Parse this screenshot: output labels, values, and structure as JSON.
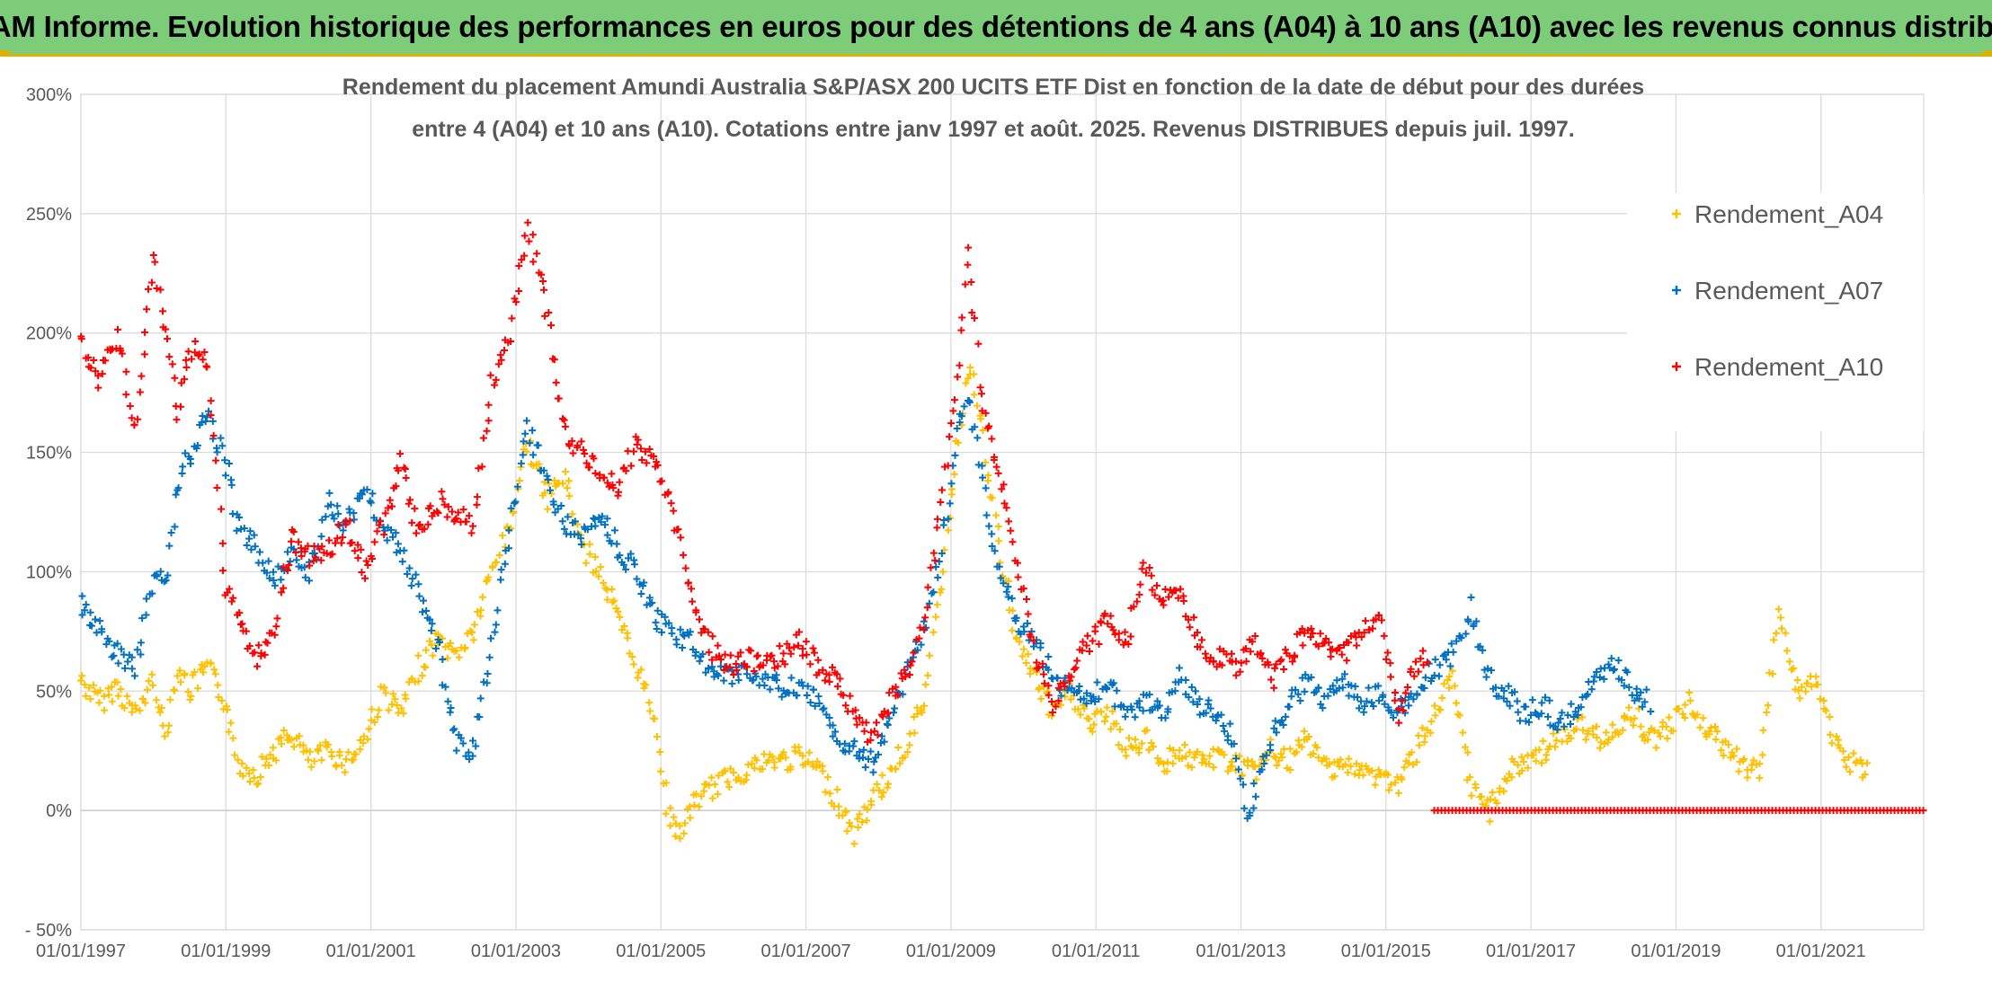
{
  "banner": {
    "title": "ADAM Informe. Evolution historique des performances en euros pour des détentions de 4 ans (A04) à 10 ans (A10) avec les revenus connus distribués"
  },
  "chart_data": {
    "type": "scatter",
    "title_lines": [
      "Rendement du placement Amundi Australia S&P/ASX 200 UCITS ETF Dist en fonction de la date de début pour des durées",
      "entre 4 (A04) et 10 ans (A10). Cotations entre janv 1997 et août. 2025. Revenus DISTRIBUES depuis juil. 1997."
    ],
    "xlabel": "",
    "ylabel": "",
    "x_range": [
      "1997-01-01",
      "2022-06-01"
    ],
    "ylim": [
      -50,
      300
    ],
    "y_ticks": [
      -50,
      0,
      50,
      100,
      150,
      200,
      250,
      300
    ],
    "y_tick_labels": [
      "- 50%",
      "0%",
      "50%",
      "100%",
      "150%",
      "200%",
      "250%",
      "300%"
    ],
    "x_tick_labels": [
      "01/01/1997",
      "01/01/1999",
      "01/01/2001",
      "01/01/2003",
      "01/01/2005",
      "01/01/2007",
      "01/01/2009",
      "01/01/2011",
      "01/01/2013",
      "01/01/2015",
      "01/01/2017",
      "01/01/2019",
      "01/01/2021"
    ],
    "grid": true,
    "legend_position": "right",
    "marker": "+",
    "series": [
      {
        "name": "Rendement_A04",
        "color": "#ffc000",
        "points": [
          [
            "1997-01",
            55
          ],
          [
            "1997-04",
            45
          ],
          [
            "1997-07",
            52
          ],
          [
            "1997-10",
            40
          ],
          [
            "1998-01",
            55
          ],
          [
            "1998-03",
            30
          ],
          [
            "1998-05",
            60
          ],
          [
            "1998-07",
            50
          ],
          [
            "1998-10",
            60
          ],
          [
            "1999-01",
            45
          ],
          [
            "1999-03",
            20
          ],
          [
            "1999-06",
            15
          ],
          [
            "1999-09",
            25
          ],
          [
            "1999-12",
            32
          ],
          [
            "2000-03",
            20
          ],
          [
            "2000-06",
            25
          ],
          [
            "2000-09",
            20
          ],
          [
            "2000-12",
            30
          ],
          [
            "2001-03",
            50
          ],
          [
            "2001-06",
            40
          ],
          [
            "2001-09",
            60
          ],
          [
            "2001-12",
            72
          ],
          [
            "2002-03",
            65
          ],
          [
            "2002-06",
            75
          ],
          [
            "2002-09",
            100
          ],
          [
            "2002-12",
            120
          ],
          [
            "2003-03",
            155
          ],
          [
            "2003-06",
            130
          ],
          [
            "2003-09",
            140
          ],
          [
            "2003-12",
            110
          ],
          [
            "2004-03",
            100
          ],
          [
            "2004-06",
            80
          ],
          [
            "2004-09",
            60
          ],
          [
            "2004-12",
            40
          ],
          [
            "2005-02",
            0
          ],
          [
            "2005-04",
            -10
          ],
          [
            "2005-07",
            5
          ],
          [
            "2005-10",
            10
          ],
          [
            "2006-01",
            15
          ],
          [
            "2006-06",
            20
          ],
          [
            "2006-12",
            22
          ],
          [
            "2007-03",
            18
          ],
          [
            "2007-06",
            5
          ],
          [
            "2007-09",
            -10
          ],
          [
            "2007-12",
            5
          ],
          [
            "2008-03",
            15
          ],
          [
            "2008-06",
            30
          ],
          [
            "2008-09",
            50
          ],
          [
            "2008-12",
            110
          ],
          [
            "2009-02",
            150
          ],
          [
            "2009-04",
            190
          ],
          [
            "2009-06",
            160
          ],
          [
            "2009-09",
            110
          ],
          [
            "2009-12",
            70
          ],
          [
            "2010-03",
            55
          ],
          [
            "2010-06",
            40
          ],
          [
            "2010-09",
            50
          ],
          [
            "2010-12",
            35
          ],
          [
            "2011-03",
            40
          ],
          [
            "2011-06",
            25
          ],
          [
            "2011-09",
            30
          ],
          [
            "2011-12",
            20
          ],
          [
            "2012-03",
            25
          ],
          [
            "2012-06",
            20
          ],
          [
            "2012-09",
            22
          ],
          [
            "2012-12",
            20
          ],
          [
            "2013-03",
            15
          ],
          [
            "2013-06",
            25
          ],
          [
            "2013-09",
            20
          ],
          [
            "2013-12",
            30
          ],
          [
            "2014-03",
            18
          ],
          [
            "2014-06",
            20
          ],
          [
            "2014-09",
            15
          ],
          [
            "2014-12",
            15
          ],
          [
            "2015-03",
            10
          ],
          [
            "2015-06",
            25
          ],
          [
            "2015-09",
            40
          ],
          [
            "2015-12",
            55
          ],
          [
            "2016-03",
            10
          ],
          [
            "2016-06",
            0
          ],
          [
            "2016-09",
            15
          ],
          [
            "2016-12",
            20
          ],
          [
            "2017-03",
            25
          ],
          [
            "2017-06",
            30
          ],
          [
            "2017-09",
            35
          ],
          [
            "2017-12",
            30
          ],
          [
            "2018-03",
            35
          ],
          [
            "2018-06",
            40
          ],
          [
            "2018-09",
            30
          ],
          [
            "2018-12",
            35
          ],
          [
            "2019-03",
            45
          ],
          [
            "2019-06",
            35
          ],
          [
            "2019-09",
            25
          ],
          [
            "2019-12",
            20
          ],
          [
            "2020-03",
            15
          ],
          [
            "2020-06",
            85
          ],
          [
            "2020-09",
            50
          ],
          [
            "2020-12",
            55
          ],
          [
            "2021-03",
            30
          ],
          [
            "2021-06",
            20
          ],
          [
            "2021-09",
            15
          ]
        ]
      },
      {
        "name": "Rendement_A07",
        "color": "#0070c0",
        "points": [
          [
            "1997-01",
            85
          ],
          [
            "1997-04",
            75
          ],
          [
            "1997-07",
            65
          ],
          [
            "1997-10",
            60
          ],
          [
            "1998-01",
            100
          ],
          [
            "1998-03",
            95
          ],
          [
            "1998-05",
            135
          ],
          [
            "1998-07",
            150
          ],
          [
            "1998-10",
            165
          ],
          [
            "1999-01",
            145
          ],
          [
            "1999-03",
            120
          ],
          [
            "1999-06",
            110
          ],
          [
            "1999-09",
            95
          ],
          [
            "1999-12",
            110
          ],
          [
            "2000-03",
            100
          ],
          [
            "2000-06",
            130
          ],
          [
            "2000-09",
            120
          ],
          [
            "2000-12",
            135
          ],
          [
            "2001-03",
            120
          ],
          [
            "2001-06",
            110
          ],
          [
            "2001-09",
            90
          ],
          [
            "2001-12",
            70
          ],
          [
            "2002-03",
            30
          ],
          [
            "2002-06",
            25
          ],
          [
            "2002-09",
            70
          ],
          [
            "2002-12",
            120
          ],
          [
            "2003-03",
            160
          ],
          [
            "2003-06",
            140
          ],
          [
            "2003-09",
            120
          ],
          [
            "2003-12",
            115
          ],
          [
            "2004-03",
            125
          ],
          [
            "2004-06",
            110
          ],
          [
            "2004-09",
            100
          ],
          [
            "2004-12",
            80
          ],
          [
            "2005-03",
            75
          ],
          [
            "2005-06",
            70
          ],
          [
            "2005-09",
            60
          ],
          [
            "2005-12",
            55
          ],
          [
            "2006-03",
            60
          ],
          [
            "2006-06",
            55
          ],
          [
            "2006-12",
            50
          ],
          [
            "2007-03",
            45
          ],
          [
            "2007-06",
            30
          ],
          [
            "2007-09",
            25
          ],
          [
            "2007-12",
            20
          ],
          [
            "2008-03",
            40
          ],
          [
            "2008-06",
            60
          ],
          [
            "2008-09",
            80
          ],
          [
            "2008-12",
            120
          ],
          [
            "2009-02",
            160
          ],
          [
            "2009-04",
            175
          ],
          [
            "2009-06",
            140
          ],
          [
            "2009-09",
            100
          ],
          [
            "2009-12",
            80
          ],
          [
            "2010-03",
            70
          ],
          [
            "2010-06",
            55
          ],
          [
            "2010-09",
            50
          ],
          [
            "2010-12",
            45
          ],
          [
            "2011-03",
            55
          ],
          [
            "2011-06",
            40
          ],
          [
            "2011-09",
            45
          ],
          [
            "2011-12",
            40
          ],
          [
            "2012-03",
            55
          ],
          [
            "2012-06",
            45
          ],
          [
            "2012-09",
            40
          ],
          [
            "2012-12",
            30
          ],
          [
            "2013-02",
            -5
          ],
          [
            "2013-06",
            30
          ],
          [
            "2013-09",
            45
          ],
          [
            "2013-12",
            55
          ],
          [
            "2014-03",
            45
          ],
          [
            "2014-06",
            55
          ],
          [
            "2014-09",
            45
          ],
          [
            "2014-12",
            50
          ],
          [
            "2015-03",
            40
          ],
          [
            "2015-06",
            50
          ],
          [
            "2015-09",
            60
          ],
          [
            "2015-12",
            65
          ],
          [
            "2016-03",
            85
          ],
          [
            "2016-06",
            55
          ],
          [
            "2016-09",
            50
          ],
          [
            "2016-12",
            40
          ],
          [
            "2017-03",
            45
          ],
          [
            "2017-06",
            35
          ],
          [
            "2017-09",
            45
          ],
          [
            "2017-12",
            55
          ],
          [
            "2018-03",
            60
          ],
          [
            "2018-06",
            50
          ],
          [
            "2018-09",
            45
          ]
        ]
      },
      {
        "name": "Rendement_A10",
        "color": "#ff0000",
        "points": [
          [
            "1997-01",
            195
          ],
          [
            "1997-04",
            180
          ],
          [
            "1997-07",
            200
          ],
          [
            "1997-10",
            160
          ],
          [
            "1998-01",
            230
          ],
          [
            "1998-03",
            200
          ],
          [
            "1998-05",
            165
          ],
          [
            "1998-07",
            195
          ],
          [
            "1998-10",
            185
          ],
          [
            "1999-01",
            95
          ],
          [
            "1999-03",
            80
          ],
          [
            "1999-06",
            65
          ],
          [
            "1999-09",
            75
          ],
          [
            "1999-12",
            115
          ],
          [
            "2000-03",
            105
          ],
          [
            "2000-06",
            110
          ],
          [
            "2000-09",
            120
          ],
          [
            "2000-12",
            100
          ],
          [
            "2001-03",
            120
          ],
          [
            "2001-06",
            145
          ],
          [
            "2001-09",
            115
          ],
          [
            "2001-12",
            130
          ],
          [
            "2002-03",
            125
          ],
          [
            "2002-06",
            120
          ],
          [
            "2002-09",
            180
          ],
          [
            "2002-12",
            200
          ],
          [
            "2003-03",
            245
          ],
          [
            "2003-06",
            210
          ],
          [
            "2003-09",
            160
          ],
          [
            "2003-12",
            150
          ],
          [
            "2004-03",
            140
          ],
          [
            "2004-06",
            135
          ],
          [
            "2004-09",
            155
          ],
          [
            "2004-12",
            145
          ],
          [
            "2005-03",
            125
          ],
          [
            "2005-06",
            90
          ],
          [
            "2005-09",
            70
          ],
          [
            "2005-12",
            60
          ],
          [
            "2006-03",
            65
          ],
          [
            "2006-06",
            60
          ],
          [
            "2006-12",
            70
          ],
          [
            "2007-03",
            60
          ],
          [
            "2007-06",
            55
          ],
          [
            "2007-09",
            40
          ],
          [
            "2007-12",
            30
          ],
          [
            "2008-03",
            45
          ],
          [
            "2008-06",
            60
          ],
          [
            "2008-09",
            85
          ],
          [
            "2008-12",
            140
          ],
          [
            "2009-02",
            180
          ],
          [
            "2009-04",
            235
          ],
          [
            "2009-06",
            170
          ],
          [
            "2009-09",
            140
          ],
          [
            "2009-12",
            105
          ],
          [
            "2010-03",
            65
          ],
          [
            "2010-06",
            45
          ],
          [
            "2010-09",
            60
          ],
          [
            "2010-12",
            70
          ],
          [
            "2011-03",
            80
          ],
          [
            "2011-06",
            70
          ],
          [
            "2011-09",
            100
          ],
          [
            "2011-12",
            90
          ],
          [
            "2012-03",
            90
          ],
          [
            "2012-06",
            70
          ],
          [
            "2012-09",
            65
          ],
          [
            "2012-12",
            60
          ],
          [
            "2013-03",
            70
          ],
          [
            "2013-06",
            55
          ],
          [
            "2013-09",
            65
          ],
          [
            "2013-12",
            75
          ],
          [
            "2014-03",
            70
          ],
          [
            "2014-06",
            65
          ],
          [
            "2014-09",
            75
          ],
          [
            "2014-12",
            80
          ],
          [
            "2015-03",
            40
          ],
          [
            "2015-06",
            60
          ],
          [
            "2015-08",
            65
          ]
        ]
      },
      {
        "name": "Rendement_A10 (zero)",
        "color": "#ff0000",
        "zero_band": [
          "2015-09",
          "2022-06"
        ]
      }
    ]
  }
}
